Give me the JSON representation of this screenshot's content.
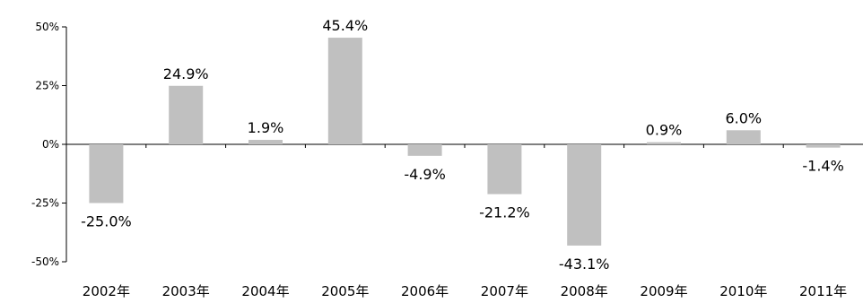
{
  "chart_data": {
    "type": "bar",
    "categories": [
      "2002年",
      "2003年",
      "2004年",
      "2005年",
      "2006年",
      "2007年",
      "2008年",
      "2009年",
      "2010年",
      "2011年"
    ],
    "values": [
      -25.0,
      24.9,
      1.9,
      45.4,
      -4.9,
      -21.2,
      -43.1,
      0.9,
      6.0,
      -1.4
    ],
    "data_labels": [
      "-25.0%",
      "24.9%",
      "1.9%",
      "45.4%",
      "-4.9%",
      "-21.2%",
      "-43.1%",
      "0.9%",
      "6.0%",
      "-1.4%"
    ],
    "title": "",
    "xlabel": "",
    "ylabel": "",
    "ylim": [
      -50,
      50
    ],
    "yticks": [
      50,
      25,
      0,
      -25,
      -50
    ],
    "ytick_labels": [
      "50%",
      "25%",
      "0%",
      "-25%",
      "-50%"
    ],
    "grid": false,
    "bar_color": "#c0c0c0"
  }
}
